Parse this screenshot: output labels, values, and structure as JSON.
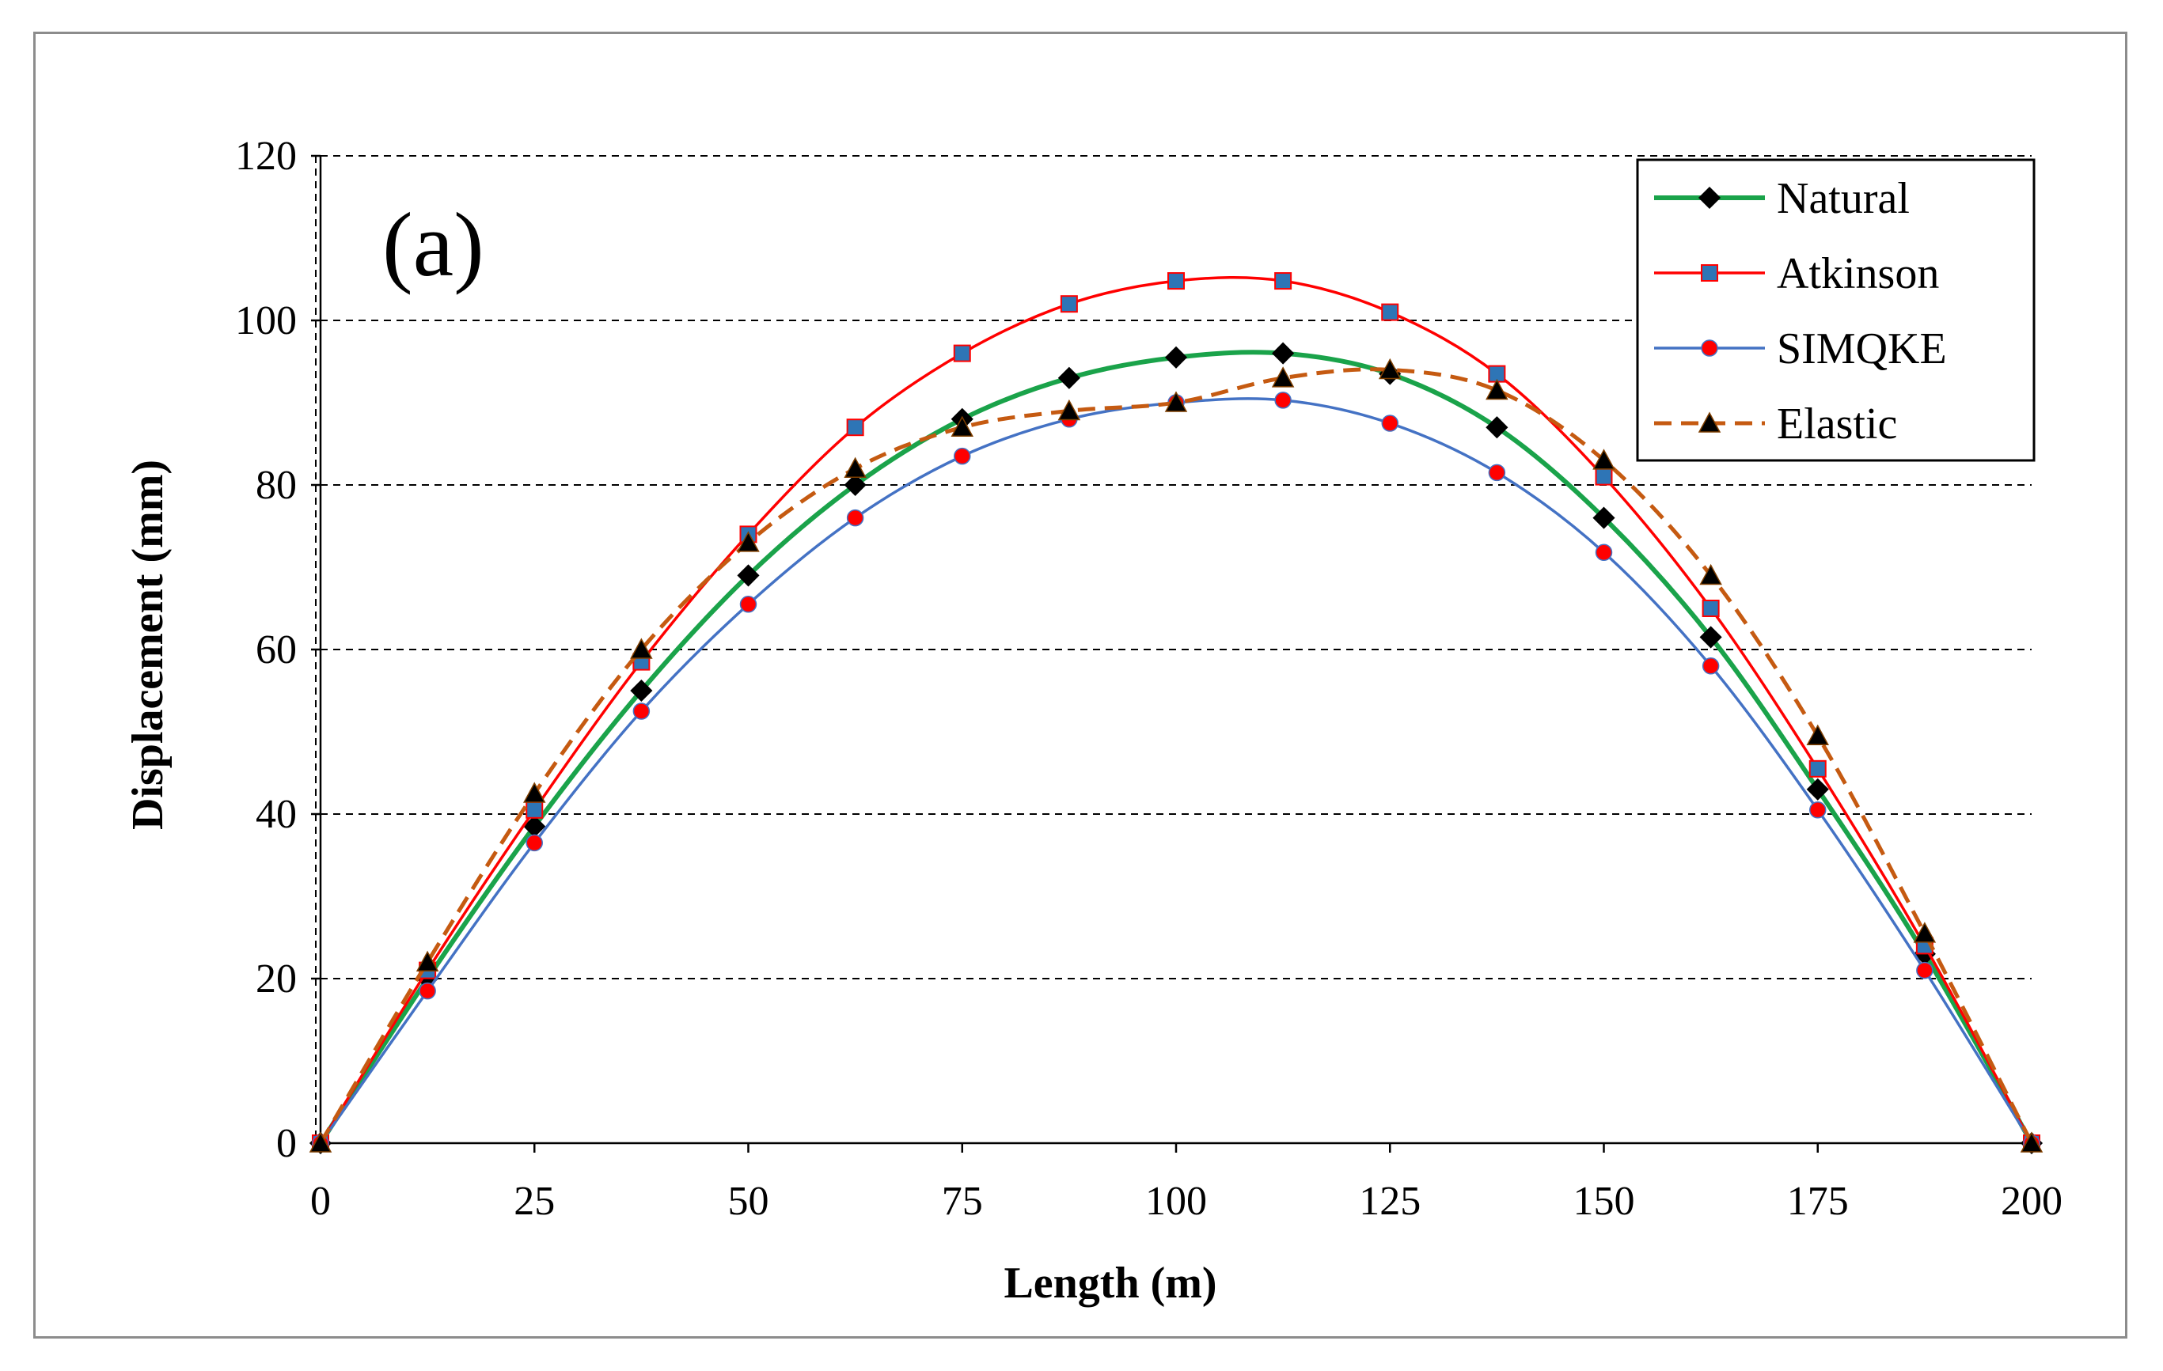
{
  "chart_data": {
    "type": "line",
    "title": "",
    "panel_label": "(a)",
    "xlabel": "Length (m)",
    "ylabel": "Displacement (mm)",
    "xlim": [
      0,
      200
    ],
    "ylim": [
      0,
      120
    ],
    "x_ticks": [
      0,
      25,
      50,
      75,
      100,
      125,
      150,
      175,
      200
    ],
    "y_ticks": [
      0,
      20,
      40,
      60,
      80,
      100,
      120
    ],
    "grid": "horizontal dashed",
    "legend_position": "top-right",
    "x": [
      0,
      12.5,
      25,
      37.5,
      50,
      62.5,
      75,
      87.5,
      100,
      112.5,
      125,
      137.5,
      150,
      162.5,
      175,
      187.5,
      200
    ],
    "series": [
      {
        "name": "Natural",
        "line_color": "#1aa34a",
        "line_style": "solid",
        "marker": "diamond",
        "marker_fill": "#000000",
        "marker_stroke": "#000000",
        "values": [
          0,
          20,
          38.5,
          55,
          69,
          80,
          88,
          93,
          95.5,
          96,
          93.5,
          87,
          76,
          61.5,
          43,
          23,
          0
        ]
      },
      {
        "name": "Atkinson",
        "line_color": "#ff0000",
        "line_style": "solid",
        "marker": "square",
        "marker_fill": "#2e75b6",
        "marker_stroke": "#ff0000",
        "values": [
          0,
          21,
          40.5,
          58.5,
          74,
          87,
          96,
          102,
          104.8,
          104.8,
          101,
          93.5,
          81,
          65,
          45.5,
          24,
          0
        ]
      },
      {
        "name": "SIMQKE",
        "line_color": "#4472c4",
        "line_style": "solid",
        "marker": "circle",
        "marker_fill": "#ff0000",
        "marker_stroke": "#4472c4",
        "values": [
          0,
          18.5,
          36.5,
          52.5,
          65.5,
          76,
          83.5,
          88,
          90,
          90.3,
          87.5,
          81.5,
          71.8,
          58,
          40.5,
          21,
          0
        ]
      },
      {
        "name": "Elastic",
        "line_color": "#c55a11",
        "line_style": "dashed",
        "marker": "triangle",
        "marker_fill": "#000000",
        "marker_stroke": "#7f3f00",
        "values": [
          0,
          22,
          42.5,
          60,
          73,
          82,
          87,
          89,
          90,
          93,
          94,
          91.5,
          83,
          69,
          49.5,
          25.5,
          0
        ]
      }
    ]
  }
}
